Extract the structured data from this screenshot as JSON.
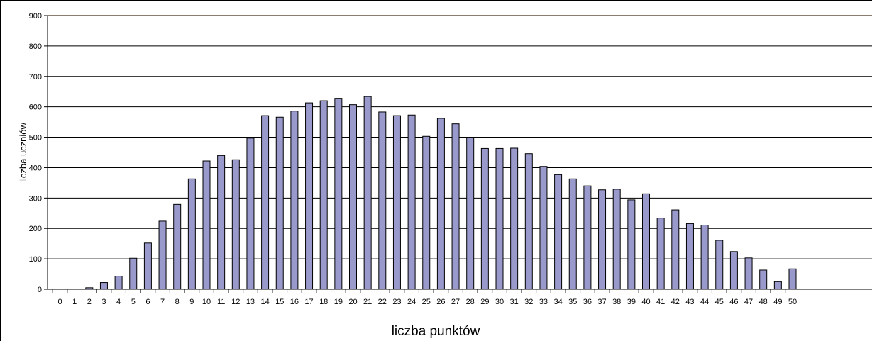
{
  "chart_data": {
    "type": "bar",
    "title": "",
    "xlabel": "liczba punktów",
    "ylabel": "liczba uczniów",
    "ylim": [
      0,
      900
    ],
    "yticks": [
      0,
      100,
      200,
      300,
      400,
      500,
      600,
      700,
      800,
      900
    ],
    "grid": true,
    "legend": "none",
    "bar_color": "#9999cc",
    "bar_edge_color": "#000000",
    "categories": [
      "0",
      "1",
      "2",
      "3",
      "4",
      "5",
      "6",
      "7",
      "8",
      "9",
      "10",
      "11",
      "12",
      "13",
      "14",
      "15",
      "16",
      "17",
      "18",
      "19",
      "20",
      "21",
      "22",
      "23",
      "24",
      "25",
      "26",
      "27",
      "28",
      "29",
      "30",
      "31",
      "32",
      "33",
      "34",
      "35",
      "36",
      "37",
      "38",
      "39",
      "40",
      "41",
      "42",
      "43",
      "44",
      "45",
      "46",
      "47",
      "48",
      "49",
      "50"
    ],
    "values": [
      0,
      1,
      5,
      22,
      43,
      102,
      152,
      224,
      279,
      363,
      422,
      440,
      426,
      497,
      571,
      566,
      586,
      613,
      620,
      628,
      607,
      634,
      583,
      571,
      573,
      503,
      562,
      544,
      500,
      463,
      463,
      464,
      446,
      404,
      377,
      363,
      340,
      327,
      329,
      294,
      314,
      234,
      261,
      216,
      211,
      161,
      124,
      103,
      63,
      25,
      67
    ]
  }
}
